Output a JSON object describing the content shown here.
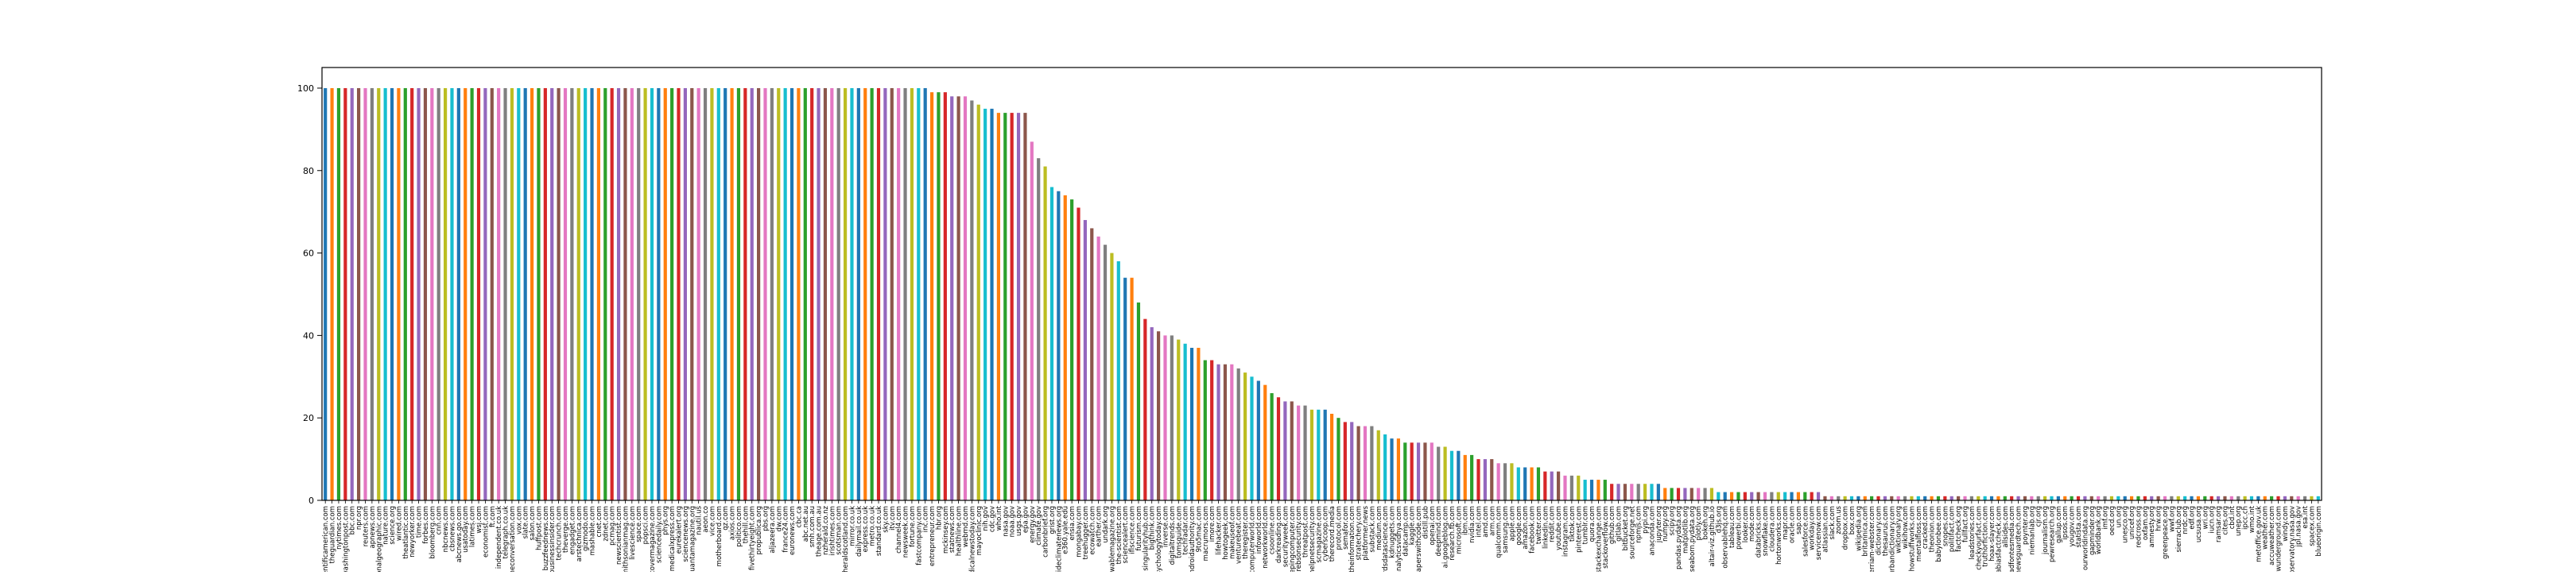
{
  "chart_data": {
    "type": "bar",
    "title": "",
    "xlabel": "",
    "ylabel": "",
    "ylim": [
      0,
      105
    ],
    "yticks": [
      0,
      20,
      40,
      60,
      80,
      100
    ],
    "grid": false,
    "legend": "none",
    "palette": [
      "#1f77b4",
      "#ff7f0e",
      "#2ca02c",
      "#d62728",
      "#9467bd",
      "#8c564b",
      "#e377c2",
      "#7f7f7f",
      "#bcbd22",
      "#17becf"
    ],
    "categories": [
      "scientificamerican.com",
      "theguardian.com",
      "nytimes.com",
      "washingtonpost.com",
      "bbc.com",
      "npr.org",
      "reuters.com",
      "apnews.com",
      "nationalgeographic.com",
      "nature.com",
      "science.org",
      "wired.com",
      "theatlantic.com",
      "newyorker.com",
      "time.com",
      "forbes.com",
      "bloomberg.com",
      "cnn.com",
      "nbcnews.com",
      "cbsnews.com",
      "abcnews.go.com",
      "usatoday.com",
      "latimes.com",
      "wsj.com",
      "economist.com",
      "ft.com",
      "independent.co.uk",
      "telegraph.co.uk",
      "theconversation.com",
      "vox.com",
      "slate.com",
      "salon.com",
      "huffpost.com",
      "buzzfeednews.com",
      "businessinsider.com",
      "techcrunch.com",
      "theverge.com",
      "engadget.com",
      "arstechnica.com",
      "gizmodo.com",
      "mashable.com",
      "cnet.com",
      "zdnet.com",
      "pcmag.com",
      "newscientist.com",
      "smithsonianmag.com",
      "livescience.com",
      "space.com",
      "popsci.com",
      "discovermagazine.com",
      "sciencedaily.com",
      "phys.org",
      "medicalxpress.com",
      "eurekalert.org",
      "sciencenews.org",
      "quantamagazine.org",
      "nautil.us",
      "aeon.co",
      "vice.com",
      "motherboard.com",
      "qz.com",
      "axios.com",
      "politico.com",
      "thehill.com",
      "fivethirtyeight.com",
      "propublica.org",
      "pbs.org",
      "aljazeera.com",
      "dw.com",
      "france24.com",
      "euronews.com",
      "cbc.ca",
      "abc.net.au",
      "smh.com.au",
      "theage.com.au",
      "nzherald.co.nz",
      "irishtimes.com",
      "scotsman.com",
      "heraldscotland.com",
      "mirror.co.uk",
      "dailymail.co.uk",
      "express.co.uk",
      "metro.co.uk",
      "standard.co.uk",
      "sky.com",
      "itv.com",
      "channel4.com",
      "newsweek.com",
      "fortune.com",
      "fastcompany.com",
      "inc.com",
      "entrepreneur.com",
      "hbr.org",
      "mckinsey.com",
      "statnews.com",
      "healthline.com",
      "webmd.com",
      "medicalnewstoday.com",
      "mayoclinic.org",
      "nih.gov",
      "cdc.gov",
      "who.int",
      "nasa.gov",
      "noaa.gov",
      "usgs.gov",
      "epa.gov",
      "energy.gov",
      "climate.gov",
      "carbonbrief.org",
      "grist.org",
      "insideclimatenews.org",
      "e360.yale.edu",
      "ensia.com",
      "mongabay.com",
      "treehugger.com",
      "ecowatch.com",
      "earther.com",
      "undark.org",
      "knowablemagazine.org",
      "the-scientist.com",
      "sciencealert.com",
      "iflscience.com",
      "futurism.com",
      "singularityhub.com",
      "bigthink.com",
      "psychologytoday.com",
      "inverse.com",
      "digitaltrends.com",
      "tomsguide.com",
      "techradar.com",
      "androidauthority.com",
      "9to5mac.com",
      "macrumors.com",
      "imore.com",
      "lifehacker.com",
      "howtogeek.com",
      "makeuseof.com",
      "venturebeat.com",
      "theregister.com",
      "computerworld.com",
      "infoworld.com",
      "networkworld.com",
      "csoonline.com",
      "darkreading.com",
      "securityweek.com",
      "bleepingcomputer.com",
      "krebsonsecurity.com",
      "threatpost.com",
      "helpnetsecurity.com",
      "scmagazine.com",
      "cyberscoop.com",
      "therecord.media",
      "protocol.com",
      "semafor.com",
      "theinformation.com",
      "stratechery.com",
      "platformer.news",
      "substack.com",
      "medium.com",
      "towardsdatascience.com",
      "kdnuggets.com",
      "analyticsvidhya.com",
      "datacamp.com",
      "kaggle.com",
      "paperswithcode.com",
      "distill.pub",
      "openai.com",
      "deepmind.com",
      "ai.googleblog.com",
      "research.fb.com",
      "microsoft.com",
      "ibm.com",
      "nvidia.com",
      "intel.com",
      "amd.com",
      "arm.com",
      "qualcomm.com",
      "samsung.com",
      "apple.com",
      "google.com",
      "amazon.com",
      "facebook.com",
      "twitter.com",
      "linkedin.com",
      "reddit.com",
      "youtube.com",
      "instagram.com",
      "tiktok.com",
      "pinterest.com",
      "tumblr.com",
      "quora.com",
      "stackexchange.com",
      "stackoverflow.com",
      "github.com",
      "gitlab.com",
      "bitbucket.org",
      "sourceforge.net",
      "npmjs.com",
      "pypi.org",
      "anaconda.com",
      "jupyter.org",
      "numpy.org",
      "scipy.org",
      "pandas.pydata.org",
      "matplotlib.org",
      "seaborn.pydata.org",
      "plotly.com",
      "bokeh.org",
      "altair-viz.github.io",
      "d3js.org",
      "observablehq.com",
      "tableau.com",
      "powerbi.com",
      "looker.com",
      "mode.com",
      "databricks.com",
      "snowflake.com",
      "cloudera.com",
      "hortonworks.com",
      "mapr.com",
      "oracle.com",
      "sap.com",
      "salesforce.com",
      "workday.com",
      "servicenow.com",
      "atlassian.com",
      "slack.com",
      "zoom.us",
      "dropbox.com",
      "box.com",
      "wikipedia.org",
      "britannica.com",
      "merriam-webster.com",
      "dictionary.com",
      "thesaurus.com",
      "urbandictionary.com",
      "wiktionary.org",
      "wikihow.com",
      "howstuffworks.com",
      "mentalfloss.com",
      "cracked.com",
      "theonion.com",
      "babylonbee.com",
      "snopes.com",
      "politifact.com",
      "factcheck.org",
      "fullfact.org",
      "leadstories.com",
      "checkyourfact.com",
      "truthorfiction.com",
      "hoax-slayer.com",
      "mediabiasfactcheck.com",
      "allsides.com",
      "adfontesmedia.com",
      "newsguardtech.com",
      "poynter.org",
      "niemanlab.org",
      "cjr.org",
      "journalism.org",
      "pewresearch.org",
      "gallup.com",
      "ipsos.com",
      "yougov.com",
      "statista.com",
      "ourworldindata.org",
      "gapminder.org",
      "worldbank.org",
      "imf.org",
      "oecd.org",
      "un.org",
      "unesco.org",
      "unicef.org",
      "redcross.org",
      "oxfam.org",
      "amnesty.org",
      "hrw.org",
      "greenpeace.org",
      "wwf.org",
      "sierraclub.org",
      "nrdc.org",
      "edf.org",
      "ucsusa.org",
      "wri.org",
      "iucn.org",
      "ramsar.org",
      "cites.org",
      "cbd.int",
      "unep.org",
      "ipcc.ch",
      "wmo.int",
      "metoffice.gov.uk",
      "weather.com",
      "accuweather.com",
      "wunderground.com",
      "windy.com",
      "earthobservatory.nasa.gov",
      "jpl.nasa.gov",
      "esa.int",
      "spacex.com",
      "blueorigin.com"
    ],
    "values": [
      100,
      100,
      100,
      100,
      100,
      100,
      100,
      100,
      100,
      100,
      100,
      100,
      100,
      100,
      100,
      100,
      100,
      100,
      100,
      100,
      100,
      100,
      100,
      100,
      100,
      100,
      100,
      100,
      100,
      100,
      100,
      100,
      100,
      100,
      100,
      100,
      100,
      100,
      100,
      100,
      100,
      100,
      100,
      100,
      100,
      100,
      100,
      100,
      100,
      100,
      100,
      100,
      100,
      100,
      100,
      100,
      100,
      100,
      100,
      100,
      100,
      100,
      100,
      100,
      100,
      100,
      100,
      100,
      100,
      100,
      100,
      100,
      100,
      100,
      100,
      100,
      100,
      100,
      100,
      100,
      100,
      100,
      100,
      100,
      100,
      100,
      100,
      100,
      100,
      100,
      100,
      99,
      99,
      99,
      98,
      98,
      98,
      97,
      96,
      95,
      95,
      94,
      94,
      94,
      94,
      94,
      87,
      83,
      81,
      76,
      75,
      74,
      73,
      71,
      68,
      66,
      64,
      62,
      60,
      58,
      54,
      54,
      48,
      44,
      42,
      41,
      40,
      40,
      39,
      38,
      37,
      37,
      34,
      34,
      33,
      33,
      33,
      32,
      31,
      30,
      29,
      28,
      26,
      25,
      24,
      24,
      23,
      23,
      22,
      22,
      22,
      21,
      20,
      19,
      19,
      18,
      18,
      18,
      17,
      16,
      15,
      15,
      14,
      14,
      14,
      14,
      14,
      13,
      13,
      12,
      12,
      11,
      11,
      10,
      10,
      10,
      9,
      9,
      9,
      8,
      8,
      8,
      8,
      7,
      7,
      7,
      6,
      6,
      6,
      5,
      5,
      5,
      5,
      4,
      4,
      4,
      4,
      4,
      4,
      4,
      4,
      3,
      3,
      3,
      3,
      3,
      3,
      3,
      3,
      2,
      2,
      2,
      2,
      2,
      2,
      2,
      2,
      2,
      2,
      2,
      2,
      2,
      2,
      2,
      2,
      1,
      1,
      1,
      1,
      1,
      1,
      1,
      1,
      1,
      1,
      1,
      1,
      1,
      1,
      1,
      1,
      1,
      1,
      1,
      1,
      1,
      1,
      1,
      1,
      1,
      1,
      1,
      1,
      1,
      1,
      1,
      1,
      1,
      1,
      1,
      1,
      1,
      1,
      1,
      1,
      1,
      1,
      1,
      1,
      1,
      1,
      1,
      1,
      1,
      1,
      1,
      1,
      1,
      1,
      1,
      1,
      1,
      1,
      1,
      1,
      1,
      1,
      1,
      1,
      1,
      1,
      1,
      1,
      1,
      1,
      1,
      1,
      1,
      1,
      1
    ]
  }
}
